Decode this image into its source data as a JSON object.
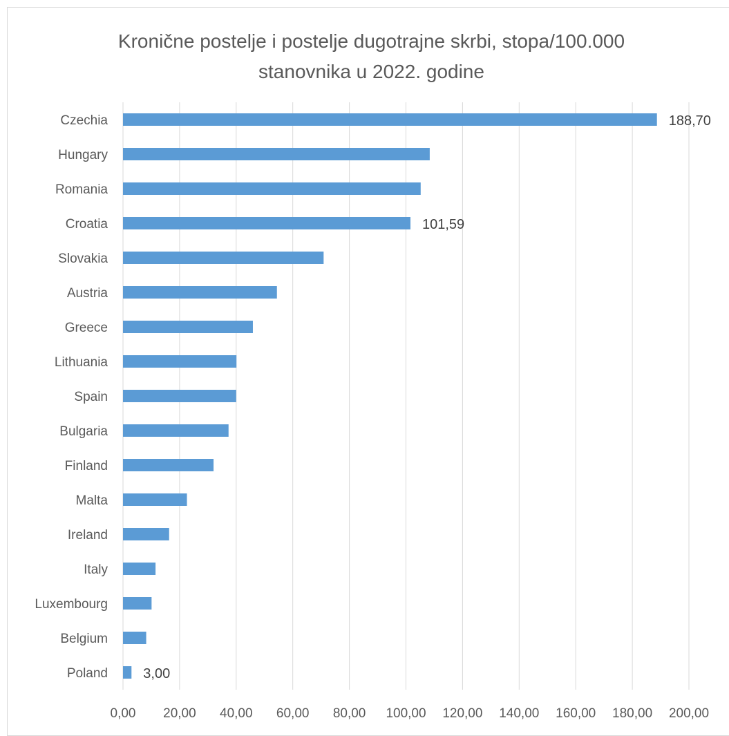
{
  "chart_data": {
    "type": "bar",
    "orientation": "horizontal",
    "title_lines": [
      "Kronične postelje i postelje dugotrajne skrbi, stopa/100.000",
      "stanovnika u 2022. godine"
    ],
    "categories": [
      "Czechia",
      "Hungary",
      "Romania",
      "Croatia",
      "Slovakia",
      "Austria",
      "Greece",
      "Lithuania",
      "Spain",
      "Bulgaria",
      "Finland",
      "Malta",
      "Ireland",
      "Italy",
      "Luxembourg",
      "Belgium",
      "Poland"
    ],
    "values": [
      188.7,
      108.4,
      105.2,
      101.59,
      70.9,
      54.4,
      45.9,
      40.1,
      40.0,
      37.3,
      32.0,
      22.6,
      16.3,
      11.5,
      10.1,
      8.2,
      3.0
    ],
    "data_labels": {
      "0": "188,70",
      "3": "101,59",
      "16": "3,00"
    },
    "xlim": [
      0,
      200
    ],
    "x_ticks": [
      0,
      20,
      40,
      60,
      80,
      100,
      120,
      140,
      160,
      180,
      200
    ],
    "x_tick_labels": [
      "0,00",
      "20,00",
      "40,00",
      "60,00",
      "80,00",
      "100,00",
      "120,00",
      "140,00",
      "160,00",
      "180,00",
      "200,00"
    ],
    "grid": true,
    "legend": false,
    "bar_color": "#5b9bd5",
    "grid_color": "#d9d9d9",
    "axis_color": "#d9d9d9",
    "text_color": "#595959"
  }
}
